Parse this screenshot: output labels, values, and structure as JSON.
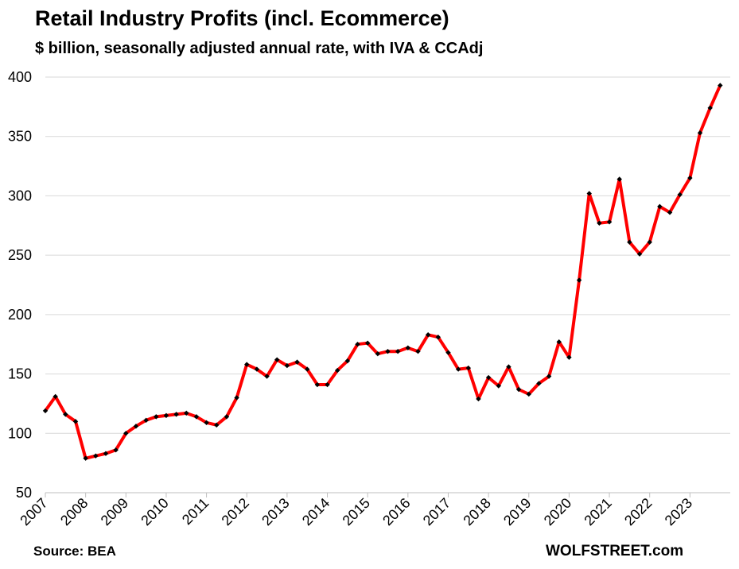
{
  "chart_data": {
    "type": "line",
    "title": "Retail Industry Profits (incl. Ecommerce)",
    "subtitle": "$ billion, seasonally adjusted annual rate, with IVA & CCAdj",
    "source": "Source: BEA",
    "credit": "WOLFSTREET.com",
    "xlabel": "",
    "ylabel": "",
    "ylim": [
      50,
      400
    ],
    "yticks": [
      50,
      100,
      150,
      200,
      250,
      300,
      350,
      400
    ],
    "xlim": [
      2007,
      2024
    ],
    "xticks": [
      2007,
      2008,
      2009,
      2010,
      2011,
      2012,
      2013,
      2014,
      2015,
      2016,
      2017,
      2018,
      2019,
      2020,
      2021,
      2022,
      2023
    ],
    "grid": "horizontal",
    "colors": {
      "line": "#ff0000",
      "marker": "#000000",
      "grid": "#d9d9d9"
    },
    "series": [
      {
        "x": [
          "2007 Q1",
          "2007 Q2",
          "2007 Q3",
          "2007 Q4",
          "2008 Q1",
          "2008 Q2",
          "2008 Q3",
          "2008 Q4",
          "2009 Q1",
          "2009 Q2",
          "2009 Q3",
          "2009 Q4",
          "2010 Q1",
          "2010 Q2",
          "2010 Q3",
          "2010 Q4",
          "2011 Q1",
          "2011 Q2",
          "2011 Q3",
          "2011 Q4",
          "2012 Q1",
          "2012 Q2",
          "2012 Q3",
          "2012 Q4",
          "2013 Q1",
          "2013 Q2",
          "2013 Q3",
          "2013 Q4",
          "2014 Q1",
          "2014 Q2",
          "2014 Q3",
          "2014 Q4",
          "2015 Q1",
          "2015 Q2",
          "2015 Q3",
          "2015 Q4",
          "2016 Q1",
          "2016 Q2",
          "2016 Q3",
          "2016 Q4",
          "2017 Q1",
          "2017 Q2",
          "2017 Q3",
          "2017 Q4",
          "2018 Q1",
          "2018 Q2",
          "2018 Q3",
          "2018 Q4",
          "2019 Q1",
          "2019 Q2",
          "2019 Q3",
          "2019 Q4",
          "2020 Q1",
          "2020 Q2",
          "2020 Q3",
          "2020 Q4",
          "2021 Q1",
          "2021 Q2",
          "2021 Q3",
          "2021 Q4",
          "2022 Q1",
          "2022 Q2",
          "2022 Q3",
          "2022 Q4",
          "2023 Q1",
          "2023 Q2",
          "2023 Q3",
          "2023 Q4"
        ],
        "values": [
          119,
          131,
          116,
          110,
          79,
          81,
          83,
          86,
          100,
          106,
          111,
          114,
          115,
          116,
          117,
          114,
          109,
          107,
          114,
          130,
          158,
          154,
          148,
          162,
          157,
          160,
          154,
          141,
          141,
          153,
          161,
          175,
          176,
          167,
          169,
          169,
          172,
          169,
          183,
          181,
          168,
          154,
          155,
          129,
          147,
          140,
          156,
          137,
          133,
          142,
          148,
          177,
          164,
          229,
          302,
          277,
          278,
          314,
          261,
          251,
          261,
          291,
          286,
          301,
          315,
          353,
          374,
          393
        ]
      }
    ]
  }
}
